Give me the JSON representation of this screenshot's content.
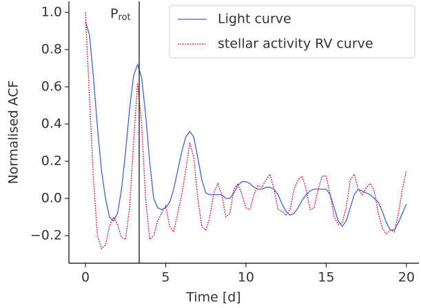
{
  "chart_data": {
    "type": "line",
    "xlabel": "Time [d]",
    "ylabel": "Normalised ACF",
    "x": [
      0,
      0.25,
      0.5,
      0.75,
      1,
      1.25,
      1.5,
      1.75,
      2,
      2.25,
      2.5,
      2.75,
      3,
      3.25,
      3.5,
      3.75,
      4,
      4.25,
      4.5,
      4.75,
      5,
      5.25,
      5.5,
      5.75,
      6,
      6.25,
      6.5,
      6.75,
      7,
      7.25,
      7.5,
      7.75,
      8,
      8.25,
      8.5,
      8.75,
      9,
      9.25,
      9.5,
      9.75,
      10,
      10.25,
      10.5,
      10.75,
      11,
      11.25,
      11.5,
      11.75,
      12,
      12.25,
      12.5,
      12.75,
      13,
      13.25,
      13.5,
      13.75,
      14,
      14.25,
      14.5,
      14.75,
      15,
      15.25,
      15.5,
      15.75,
      16,
      16.25,
      16.5,
      16.75,
      17,
      17.25,
      17.5,
      17.75,
      18,
      18.25,
      18.5,
      18.75,
      19,
      19.25,
      19.5,
      19.75,
      20
    ],
    "series": [
      {
        "name": "Light curve",
        "color": "#3f5fe6",
        "linestyle": "solid",
        "values": [
          0.95,
          0.88,
          0.65,
          0.38,
          0.15,
          0.0,
          -0.1,
          -0.12,
          -0.08,
          0.05,
          0.25,
          0.48,
          0.66,
          0.72,
          0.65,
          0.45,
          0.2,
          0.0,
          -0.05,
          -0.06,
          -0.05,
          -0.02,
          0.05,
          0.15,
          0.25,
          0.33,
          0.36,
          0.33,
          0.22,
          0.1,
          0.03,
          0.02,
          0.02,
          0.02,
          0.02,
          0.0,
          0.0,
          0.03,
          0.07,
          0.09,
          0.09,
          0.08,
          0.06,
          0.05,
          0.05,
          0.06,
          0.06,
          0.05,
          0.02,
          -0.03,
          -0.07,
          -0.09,
          -0.08,
          -0.05,
          -0.01,
          0.02,
          0.04,
          0.05,
          0.05,
          0.05,
          0.05,
          0.02,
          -0.05,
          -0.12,
          -0.15,
          -0.12,
          -0.05,
          0.02,
          0.05,
          0.04,
          0.03,
          0.02,
          0.0,
          -0.02,
          -0.07,
          -0.13,
          -0.17,
          -0.17,
          -0.13,
          -0.08,
          -0.03
        ]
      },
      {
        "name": "stellar activity RV curve",
        "color": "#e0103c",
        "linestyle": "dotted",
        "values": [
          1.0,
          0.55,
          0.1,
          -0.2,
          -0.27,
          -0.25,
          -0.15,
          -0.1,
          -0.14,
          -0.21,
          -0.22,
          -0.05,
          0.3,
          0.62,
          0.4,
          0.0,
          -0.22,
          -0.2,
          -0.12,
          -0.08,
          -0.04,
          -0.15,
          -0.18,
          -0.08,
          0.02,
          0.15,
          0.3,
          0.22,
          0.0,
          -0.15,
          -0.17,
          -0.1,
          0.03,
          0.08,
          0.02,
          -0.1,
          -0.08,
          0.05,
          0.08,
          0.02,
          -0.05,
          -0.06,
          0.02,
          0.07,
          0.06,
          0.1,
          0.13,
          0.05,
          -0.06,
          -0.07,
          -0.09,
          -0.06,
          0.05,
          0.1,
          0.12,
          0.05,
          -0.06,
          -0.05,
          0.05,
          0.12,
          0.12,
          0.02,
          -0.1,
          -0.14,
          -0.13,
          -0.05,
          0.1,
          0.13,
          0.05,
          0.02,
          0.06,
          0.08,
          0.04,
          -0.08,
          -0.16,
          -0.19,
          -0.17,
          -0.18,
          -0.08,
          0.05,
          0.15
        ]
      }
    ],
    "vline": 3.35,
    "vline_color": "#000000",
    "vline_label": {
      "main": "P",
      "sub": "rot"
    },
    "xlim": [
      -1.03,
      20.78
    ],
    "ylim": [
      -0.348,
      1.059
    ],
    "xticks": [
      0,
      5,
      10,
      15,
      20
    ],
    "yticks": [
      {
        "value": -0.2,
        "label": "−0.2"
      },
      {
        "value": 0,
        "label": "0.0"
      },
      0.2,
      0.4,
      0.6,
      0.8,
      {
        "value": 1,
        "label": "1.0"
      }
    ],
    "grid": false,
    "legend": "upper right"
  }
}
